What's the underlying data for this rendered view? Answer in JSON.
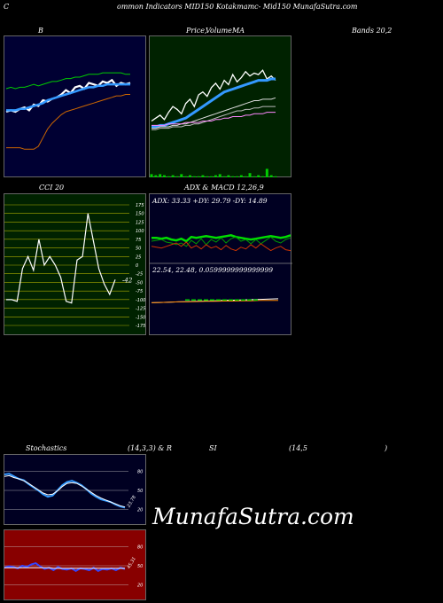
{
  "header": {
    "left": "C",
    "center": "ommon  Indicators MID150  Kotakmamc-  Mid150  MunafaSutra.com"
  },
  "titles": {
    "bb": "B",
    "price": "Price,",
    "volume": "Volume",
    "ma": "MA",
    "bands": "Bands 20,2",
    "cci": "CCI 20",
    "adx_macd": "ADX  & MACD 12,26,9",
    "adx_line": "ADX: 33.33  +DY: 29.79 -DY: 14.89",
    "macd_line": "22.54,  22.48,  0.0599999999999999",
    "stoch_a": "Stochastics",
    "stoch_b": "(14,3,3) & R",
    "rsi_a": "SI",
    "rsi_b": "(14,5",
    "rsi_c": ")"
  },
  "watermark": "MunafaSutra.com",
  "colors": {
    "bb_bg": "#000033",
    "ma_bg": "#002200",
    "cci_bg": "#002200",
    "adx_bg": "#000022",
    "stoch_bg": "#000022",
    "rsi_bg": "#880000"
  },
  "chart_data": [
    {
      "type": "line",
      "name": "bollinger",
      "series": [
        {
          "name": "price",
          "color": "#ffffff",
          "values": [
            40,
            41,
            40,
            42,
            43,
            41,
            45,
            44,
            48,
            47,
            49,
            50,
            52,
            55,
            53,
            57,
            58,
            56,
            60,
            59,
            58,
            61,
            60,
            62,
            58,
            60,
            59,
            60
          ]
        },
        {
          "name": "upper",
          "color": "#00cc00",
          "values": [
            56,
            57,
            56,
            57,
            57,
            58,
            59,
            58,
            59,
            60,
            61,
            61,
            62,
            63,
            63,
            64,
            64,
            65,
            66,
            66,
            66,
            67,
            67,
            67,
            67,
            67,
            66,
            66
          ]
        },
        {
          "name": "mid",
          "color": "#3399ff",
          "values": [
            41,
            41,
            41,
            42,
            42,
            43,
            44,
            45,
            46,
            48,
            49,
            50,
            51,
            52,
            53,
            54,
            55,
            56,
            57,
            57,
            58,
            58,
            59,
            59,
            59,
            59,
            59,
            59
          ]
        },
        {
          "name": "lower",
          "color": "#cc6600",
          "values": [
            15,
            15,
            15,
            15,
            14,
            14,
            14,
            16,
            22,
            28,
            32,
            35,
            38,
            40,
            41,
            42,
            43,
            44,
            45,
            46,
            47,
            48,
            49,
            50,
            51,
            51,
            52,
            52
          ]
        }
      ]
    },
    {
      "type": "line",
      "name": "moving-averages",
      "series": [
        {
          "name": "price",
          "color": "#ffffff",
          "values": [
            40,
            42,
            44,
            41,
            46,
            50,
            48,
            45,
            52,
            55,
            50,
            58,
            60,
            57,
            63,
            66,
            62,
            68,
            65,
            72,
            67,
            70,
            74,
            71,
            73,
            72,
            75,
            69,
            71,
            68
          ]
        },
        {
          "name": "ma-blue",
          "color": "#3399ff",
          "values": [
            36,
            36,
            37,
            37,
            38,
            39,
            40,
            41,
            42,
            44,
            46,
            48,
            50,
            52,
            54,
            56,
            58,
            60,
            61,
            62,
            63,
            64,
            65,
            66,
            67,
            68,
            68,
            68,
            69,
            69
          ]
        },
        {
          "name": "ma-white1",
          "color": "#dddddd",
          "values": [
            35,
            35,
            36,
            36,
            36,
            37,
            37,
            38,
            38,
            39,
            40,
            41,
            42,
            43,
            44,
            45,
            46,
            47,
            48,
            49,
            50,
            51,
            52,
            53,
            54,
            54,
            55,
            55,
            55,
            56
          ]
        },
        {
          "name": "ma-white2",
          "color": "#bbbbbb",
          "values": [
            34,
            34,
            35,
            35,
            35,
            36,
            36,
            36,
            37,
            37,
            38,
            38,
            39,
            40,
            41,
            42,
            43,
            44,
            45,
            46,
            47,
            47,
            48,
            48,
            49,
            49,
            50,
            50,
            50,
            50
          ]
        },
        {
          "name": "ma-pink",
          "color": "#ff88ff",
          "values": [
            37,
            37,
            37,
            37,
            38,
            38,
            38,
            38,
            39,
            39,
            39,
            39,
            40,
            40,
            40,
            41,
            41,
            42,
            42,
            43,
            43,
            43,
            44,
            44,
            45,
            45,
            45,
            46,
            46,
            46
          ]
        }
      ],
      "volume": [
        3,
        2,
        3,
        2,
        1,
        2,
        1,
        3,
        1,
        2,
        1,
        1,
        2,
        1,
        1,
        2,
        3,
        1,
        2,
        1,
        1,
        2,
        1,
        4,
        1,
        2,
        1,
        8,
        2,
        1
      ]
    },
    {
      "type": "line",
      "name": "cci",
      "ticks": [
        175,
        150,
        125,
        100,
        75,
        50,
        25,
        0,
        -25,
        -50,
        -75,
        -100,
        -125,
        -150,
        -175
      ],
      "current_label": "-42",
      "values": [
        -100,
        -100,
        -105,
        -10,
        25,
        -15,
        75,
        0,
        25,
        0,
        -35,
        -105,
        -110,
        15,
        25,
        150,
        70,
        -10,
        -55,
        -85,
        -42
      ]
    },
    {
      "type": "line",
      "name": "adx",
      "series": [
        {
          "name": "ADX",
          "color": "#00dd00",
          "values": [
            30,
            30,
            29,
            30,
            28,
            27,
            29,
            26,
            31,
            30,
            31,
            32,
            31,
            30,
            31,
            32,
            33,
            31,
            30,
            29,
            28,
            29,
            30,
            31,
            32,
            31,
            30,
            31,
            33
          ]
        },
        {
          "name": "+DY",
          "color": "#009900",
          "values": [
            26,
            27,
            28,
            25,
            24,
            22,
            24,
            20,
            27,
            23,
            29,
            22,
            28,
            25,
            30,
            24,
            29,
            31,
            26,
            28,
            23,
            28,
            23,
            27,
            31,
            26,
            24,
            28,
            30
          ]
        },
        {
          "name": "-DY",
          "color": "#cc3300",
          "values": [
            20,
            19,
            18,
            20,
            22,
            24,
            20,
            25,
            18,
            21,
            17,
            22,
            18,
            20,
            16,
            21,
            17,
            15,
            19,
            17,
            22,
            18,
            23,
            19,
            15,
            18,
            20,
            16,
            15
          ]
        }
      ]
    },
    {
      "type": "line",
      "name": "macd",
      "series": [
        {
          "name": "MACD",
          "color": "#ffffff",
          "values": [
            22.4,
            22.41,
            22.42,
            22.43,
            22.44,
            22.45,
            22.46,
            22.47,
            22.48,
            22.49,
            22.5,
            22.51,
            22.52,
            22.53,
            22.54
          ]
        },
        {
          "name": "signal",
          "color": "#ff8800",
          "values": [
            22.4,
            22.41,
            22.42,
            22.43,
            22.43,
            22.44,
            22.45,
            22.45,
            22.46,
            22.46,
            22.47,
            22.47,
            22.48,
            22.48,
            22.48
          ]
        }
      ]
    },
    {
      "type": "line",
      "name": "stochastics",
      "ticks": [
        80,
        50,
        20
      ],
      "current_label": "23.78",
      "series": [
        {
          "name": "%K",
          "color": "#3399ff",
          "values": [
            75,
            76,
            72,
            68,
            66,
            60,
            55,
            50,
            44,
            40,
            42,
            50,
            58,
            63,
            65,
            62,
            58,
            52,
            45,
            40,
            36,
            34,
            32,
            28,
            25,
            23
          ]
        },
        {
          "name": "%D",
          "color": "#ffffff",
          "values": [
            72,
            73,
            70,
            68,
            65,
            61,
            56,
            51,
            46,
            43,
            44,
            49,
            56,
            61,
            62,
            61,
            57,
            52,
            47,
            42,
            38,
            35,
            32,
            29,
            26,
            24
          ]
        }
      ]
    },
    {
      "type": "line",
      "name": "rsi",
      "ticks": [
        80,
        50,
        20
      ],
      "current_label": "45.31",
      "series": [
        {
          "name": "RSI",
          "color": "#3344ff",
          "values": [
            47,
            49,
            48,
            46,
            50,
            48,
            52,
            54,
            49,
            45,
            47,
            43,
            48,
            45,
            44,
            46,
            42,
            46,
            45,
            43,
            47,
            42,
            45,
            44,
            46,
            43,
            47,
            45
          ]
        },
        {
          "name": "ref",
          "color": "#ffffff",
          "values": [
            47,
            47,
            47,
            47,
            47,
            47,
            47,
            47,
            47,
            47,
            47,
            46,
            46,
            46,
            46,
            46,
            46,
            46,
            46,
            46,
            46,
            46,
            46,
            46,
            46,
            46,
            46,
            46
          ]
        }
      ]
    }
  ]
}
